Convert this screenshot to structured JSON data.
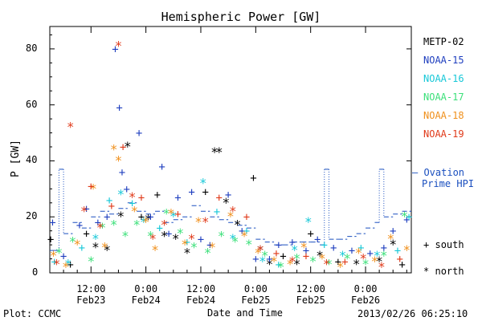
{
  "chart_data": {
    "type": "scatter",
    "title": "Hemispheric Power [GW]",
    "xlabel": "Date and Time",
    "ylabel": "P [GW]",
    "ylim": [
      0,
      88
    ],
    "xlim": [
      3,
      82
    ],
    "x_unit": "hours since 2013-02-23 00:00 UT",
    "yticks": [
      0,
      20,
      40,
      60,
      80
    ],
    "xticks": [
      {
        "value": 12,
        "line1": "12:00",
        "line2": "Feb23"
      },
      {
        "value": 24,
        "line1": "0:00",
        "line2": "Feb24"
      },
      {
        "value": 36,
        "line1": "12:00",
        "line2": "Feb24"
      },
      {
        "value": 48,
        "line1": "0:00",
        "line2": "Feb25"
      },
      {
        "value": 60,
        "line1": "12:00",
        "line2": "Feb25"
      },
      {
        "value": 72,
        "line1": "0:00",
        "line2": "Feb26"
      }
    ],
    "legend_position": "right",
    "legend": [
      {
        "name": "METP-02",
        "color": "#000000"
      },
      {
        "name": "NOAA-15",
        "color": "#1f3fbf"
      },
      {
        "name": "NOAA-16",
        "color": "#18c8d8"
      },
      {
        "name": "NOAA-17",
        "color": "#3ce07a"
      },
      {
        "name": "NOAA-18",
        "color": "#f0901c"
      },
      {
        "name": "NOAA-19",
        "color": "#e03a1a"
      }
    ],
    "ovation": {
      "label_line1": "– Ovation",
      "label_line2": "Prime HPI",
      "color": "#1a4fbf",
      "points": [
        [
          3,
          8
        ],
        [
          4,
          8
        ],
        [
          5,
          37
        ],
        [
          6,
          14
        ],
        [
          8,
          18
        ],
        [
          10,
          16
        ],
        [
          12,
          20
        ],
        [
          14,
          22
        ],
        [
          16,
          21
        ],
        [
          18,
          23
        ],
        [
          20,
          25
        ],
        [
          22,
          22
        ],
        [
          24,
          21
        ],
        [
          26,
          22
        ],
        [
          28,
          18
        ],
        [
          30,
          19
        ],
        [
          32,
          20
        ],
        [
          34,
          24
        ],
        [
          36,
          22
        ],
        [
          38,
          20
        ],
        [
          40,
          19
        ],
        [
          42,
          18
        ],
        [
          44,
          17
        ],
        [
          46,
          16
        ],
        [
          48,
          12
        ],
        [
          50,
          11
        ],
        [
          52,
          10
        ],
        [
          54,
          10
        ],
        [
          56,
          11
        ],
        [
          58,
          11
        ],
        [
          60,
          11
        ],
        [
          62,
          10
        ],
        [
          63,
          37
        ],
        [
          64,
          12
        ],
        [
          66,
          12
        ],
        [
          68,
          13
        ],
        [
          70,
          14
        ],
        [
          72,
          16
        ],
        [
          74,
          18
        ],
        [
          75,
          37
        ],
        [
          76,
          20
        ],
        [
          78,
          21
        ],
        [
          80,
          22
        ],
        [
          82,
          23
        ]
      ]
    },
    "markers": [
      {
        "symbol": "+",
        "label": "south"
      },
      {
        "symbol": "*",
        "label": "north"
      }
    ],
    "series": [
      {
        "name": "METP-02",
        "points": [
          {
            "x": 3.2,
            "y": 12,
            "s": "+"
          },
          {
            "x": 7.5,
            "y": 3,
            "s": "+"
          },
          {
            "x": 11,
            "y": 14,
            "s": "+"
          },
          {
            "x": 13,
            "y": 9,
            "s": "*"
          },
          {
            "x": 15.5,
            "y": 8,
            "s": "*"
          },
          {
            "x": 18.5,
            "y": 20,
            "s": "*"
          },
          {
            "x": 20,
            "y": 45,
            "s": "*"
          },
          {
            "x": 23,
            "y": 20,
            "s": "+"
          },
          {
            "x": 24.5,
            "y": 19,
            "s": "*"
          },
          {
            "x": 26.5,
            "y": 28,
            "s": "+"
          },
          {
            "x": 28,
            "y": 13,
            "s": "*"
          },
          {
            "x": 30.5,
            "y": 12,
            "s": "*"
          },
          {
            "x": 33,
            "y": 7,
            "s": "*"
          },
          {
            "x": 37,
            "y": 29,
            "s": "+"
          },
          {
            "x": 39,
            "y": 43,
            "s": "*"
          },
          {
            "x": 40,
            "y": 43,
            "s": "*"
          },
          {
            "x": 41.5,
            "y": 25,
            "s": "*"
          },
          {
            "x": 44,
            "y": 17,
            "s": "*"
          },
          {
            "x": 47.5,
            "y": 34,
            "s": "+"
          },
          {
            "x": 49,
            "y": 8,
            "s": "*"
          },
          {
            "x": 51,
            "y": 3,
            "s": "*"
          },
          {
            "x": 54,
            "y": 6,
            "s": "+"
          },
          {
            "x": 57,
            "y": 3,
            "s": "*"
          },
          {
            "x": 60,
            "y": 14,
            "s": "+"
          },
          {
            "x": 62,
            "y": 6,
            "s": "*"
          },
          {
            "x": 66,
            "y": 4,
            "s": "+"
          },
          {
            "x": 70,
            "y": 3,
            "s": "*"
          },
          {
            "x": 75,
            "y": 4,
            "s": "*"
          },
          {
            "x": 78,
            "y": 10,
            "s": "*"
          },
          {
            "x": 80,
            "y": 3,
            "s": "+"
          }
        ]
      },
      {
        "name": "NOAA-15",
        "points": [
          {
            "x": 3.6,
            "y": 18,
            "s": "+"
          },
          {
            "x": 6,
            "y": 6,
            "s": "+"
          },
          {
            "x": 9.5,
            "y": 17,
            "s": "+"
          },
          {
            "x": 11,
            "y": 23,
            "s": "+"
          },
          {
            "x": 13.5,
            "y": 18,
            "s": "+"
          },
          {
            "x": 15.5,
            "y": 20,
            "s": "+"
          },
          {
            "x": 17.3,
            "y": 80,
            "s": "+"
          },
          {
            "x": 18.2,
            "y": 59,
            "s": "+"
          },
          {
            "x": 18.8,
            "y": 36,
            "s": "+"
          },
          {
            "x": 19.8,
            "y": 30,
            "s": "+"
          },
          {
            "x": 22.5,
            "y": 50,
            "s": "+"
          },
          {
            "x": 25,
            "y": 20,
            "s": "+"
          },
          {
            "x": 27.5,
            "y": 38,
            "s": "+"
          },
          {
            "x": 29,
            "y": 14,
            "s": "+"
          },
          {
            "x": 31,
            "y": 27,
            "s": "+"
          },
          {
            "x": 34,
            "y": 29,
            "s": "+"
          },
          {
            "x": 36,
            "y": 12,
            "s": "+"
          },
          {
            "x": 38,
            "y": 10,
            "s": "+"
          },
          {
            "x": 42,
            "y": 28,
            "s": "+"
          },
          {
            "x": 45,
            "y": 15,
            "s": "+"
          },
          {
            "x": 48,
            "y": 5,
            "s": "+"
          },
          {
            "x": 51,
            "y": 5,
            "s": "+"
          },
          {
            "x": 53,
            "y": 10,
            "s": "+"
          },
          {
            "x": 56,
            "y": 11,
            "s": "+"
          },
          {
            "x": 59,
            "y": 8,
            "s": "+"
          },
          {
            "x": 61.5,
            "y": 12,
            "s": "+"
          },
          {
            "x": 65,
            "y": 9,
            "s": "+"
          },
          {
            "x": 69,
            "y": 8,
            "s": "+"
          },
          {
            "x": 73,
            "y": 7,
            "s": "+"
          },
          {
            "x": 76,
            "y": 9,
            "s": "+"
          },
          {
            "x": 78,
            "y": 15,
            "s": "+"
          },
          {
            "x": 81,
            "y": 19,
            "s": "+"
          }
        ]
      },
      {
        "name": "NOAA-16",
        "points": [
          {
            "x": 4,
            "y": 4,
            "s": "+"
          },
          {
            "x": 7,
            "y": 3,
            "s": "*"
          },
          {
            "x": 10,
            "y": 9,
            "s": "+"
          },
          {
            "x": 13,
            "y": 12,
            "s": "*"
          },
          {
            "x": 16,
            "y": 26,
            "s": "+"
          },
          {
            "x": 18.5,
            "y": 28,
            "s": "*"
          },
          {
            "x": 21,
            "y": 25,
            "s": "+"
          },
          {
            "x": 23.5,
            "y": 18,
            "s": "*"
          },
          {
            "x": 27,
            "y": 16,
            "s": "+"
          },
          {
            "x": 30,
            "y": 20,
            "s": "*"
          },
          {
            "x": 33,
            "y": 11,
            "s": "+"
          },
          {
            "x": 36.5,
            "y": 32,
            "s": "*"
          },
          {
            "x": 39.5,
            "y": 22,
            "s": "+"
          },
          {
            "x": 43,
            "y": 12,
            "s": "*"
          },
          {
            "x": 46,
            "y": 15,
            "s": "+"
          },
          {
            "x": 49.5,
            "y": 4,
            "s": "*"
          },
          {
            "x": 53,
            "y": 3,
            "s": "+"
          },
          {
            "x": 56.5,
            "y": 8,
            "s": "*"
          },
          {
            "x": 59.5,
            "y": 18,
            "s": "*"
          },
          {
            "x": 63,
            "y": 10,
            "s": "+"
          },
          {
            "x": 67,
            "y": 6,
            "s": "*"
          },
          {
            "x": 71,
            "y": 9,
            "s": "+"
          },
          {
            "x": 74.5,
            "y": 6,
            "s": "*"
          },
          {
            "x": 79,
            "y": 8,
            "s": "+"
          },
          {
            "x": 81.5,
            "y": 20,
            "s": "+"
          }
        ]
      },
      {
        "name": "NOAA-17",
        "points": [
          {
            "x": 5,
            "y": 7,
            "s": "*"
          },
          {
            "x": 8,
            "y": 11,
            "s": "*"
          },
          {
            "x": 12,
            "y": 4,
            "s": "*"
          },
          {
            "x": 14.5,
            "y": 16,
            "s": "*"
          },
          {
            "x": 17,
            "y": 17,
            "s": "*"
          },
          {
            "x": 19.5,
            "y": 13,
            "s": "*"
          },
          {
            "x": 22,
            "y": 17,
            "s": "*"
          },
          {
            "x": 25,
            "y": 13,
            "s": "*"
          },
          {
            "x": 28.5,
            "y": 21,
            "s": "*"
          },
          {
            "x": 31.5,
            "y": 14,
            "s": "*"
          },
          {
            "x": 34.5,
            "y": 9,
            "s": "*"
          },
          {
            "x": 37.5,
            "y": 7,
            "s": "*"
          },
          {
            "x": 40.5,
            "y": 13,
            "s": "*"
          },
          {
            "x": 43.5,
            "y": 11,
            "s": "*"
          },
          {
            "x": 46.5,
            "y": 10,
            "s": "*"
          },
          {
            "x": 50,
            "y": 6,
            "s": "*"
          },
          {
            "x": 53.5,
            "y": 2,
            "s": "*"
          },
          {
            "x": 57,
            "y": 5,
            "s": "*"
          },
          {
            "x": 60.5,
            "y": 4,
            "s": "*"
          },
          {
            "x": 64,
            "y": 3,
            "s": "*"
          },
          {
            "x": 68,
            "y": 5,
            "s": "*"
          },
          {
            "x": 72,
            "y": 3,
            "s": "*"
          },
          {
            "x": 76,
            "y": 6,
            "s": "*"
          },
          {
            "x": 80.5,
            "y": 20,
            "s": "*"
          }
        ]
      },
      {
        "name": "NOAA-18",
        "points": [
          {
            "x": 3.8,
            "y": 6,
            "s": "*"
          },
          {
            "x": 6.5,
            "y": 2,
            "s": "*"
          },
          {
            "x": 9,
            "y": 10,
            "s": "*"
          },
          {
            "x": 12.5,
            "y": 30,
            "s": "*"
          },
          {
            "x": 15,
            "y": 9,
            "s": "*"
          },
          {
            "x": 17,
            "y": 44,
            "s": "*"
          },
          {
            "x": 18,
            "y": 40,
            "s": "*"
          },
          {
            "x": 21.5,
            "y": 22,
            "s": "*"
          },
          {
            "x": 24,
            "y": 18,
            "s": "*"
          },
          {
            "x": 26,
            "y": 8,
            "s": "*"
          },
          {
            "x": 29.5,
            "y": 21,
            "s": "*"
          },
          {
            "x": 32.5,
            "y": 10,
            "s": "*"
          },
          {
            "x": 35.5,
            "y": 18,
            "s": "*"
          },
          {
            "x": 38.5,
            "y": 9,
            "s": "*"
          },
          {
            "x": 42.5,
            "y": 20,
            "s": "*"
          },
          {
            "x": 45.5,
            "y": 13,
            "s": "*"
          },
          {
            "x": 48.5,
            "y": 7,
            "s": "*"
          },
          {
            "x": 52,
            "y": 4,
            "s": "*"
          },
          {
            "x": 55.5,
            "y": 3,
            "s": "*"
          },
          {
            "x": 58.5,
            "y": 9,
            "s": "*"
          },
          {
            "x": 62.5,
            "y": 5,
            "s": "*"
          },
          {
            "x": 66.5,
            "y": 2,
            "s": "*"
          },
          {
            "x": 70.5,
            "y": 7,
            "s": "*"
          },
          {
            "x": 74,
            "y": 4,
            "s": "*"
          },
          {
            "x": 77.5,
            "y": 12,
            "s": "*"
          },
          {
            "x": 81,
            "y": 8,
            "s": "*"
          }
        ]
      },
      {
        "name": "NOAA-19",
        "points": [
          {
            "x": 4.5,
            "y": 3,
            "s": "*"
          },
          {
            "x": 7.5,
            "y": 52,
            "s": "*"
          },
          {
            "x": 10.5,
            "y": 22,
            "s": "*"
          },
          {
            "x": 12,
            "y": 31,
            "s": "+"
          },
          {
            "x": 14,
            "y": 16,
            "s": "*"
          },
          {
            "x": 16.5,
            "y": 24,
            "s": "+"
          },
          {
            "x": 18,
            "y": 81,
            "s": "*"
          },
          {
            "x": 19,
            "y": 45,
            "s": "+"
          },
          {
            "x": 21,
            "y": 27,
            "s": "*"
          },
          {
            "x": 23,
            "y": 27,
            "s": "+"
          },
          {
            "x": 25.5,
            "y": 12,
            "s": "*"
          },
          {
            "x": 28,
            "y": 17,
            "s": "*"
          },
          {
            "x": 31,
            "y": 21,
            "s": "+"
          },
          {
            "x": 34,
            "y": 12,
            "s": "*"
          },
          {
            "x": 37,
            "y": 18,
            "s": "*"
          },
          {
            "x": 40,
            "y": 27,
            "s": "+"
          },
          {
            "x": 43,
            "y": 22,
            "s": "*"
          },
          {
            "x": 46,
            "y": 20,
            "s": "+"
          },
          {
            "x": 49,
            "y": 8,
            "s": "*"
          },
          {
            "x": 52.5,
            "y": 7,
            "s": "+"
          },
          {
            "x": 56,
            "y": 4,
            "s": "*"
          },
          {
            "x": 59,
            "y": 6,
            "s": "+"
          },
          {
            "x": 63.5,
            "y": 3,
            "s": "*"
          },
          {
            "x": 67.5,
            "y": 4,
            "s": "+"
          },
          {
            "x": 71.5,
            "y": 5,
            "s": "*"
          },
          {
            "x": 75.5,
            "y": 2,
            "s": "*"
          },
          {
            "x": 79.5,
            "y": 5,
            "s": "+"
          }
        ]
      }
    ]
  },
  "footer": {
    "plot_credit": "Plot: CCMC",
    "timestamp": "2013/02/26 06:25:10"
  }
}
